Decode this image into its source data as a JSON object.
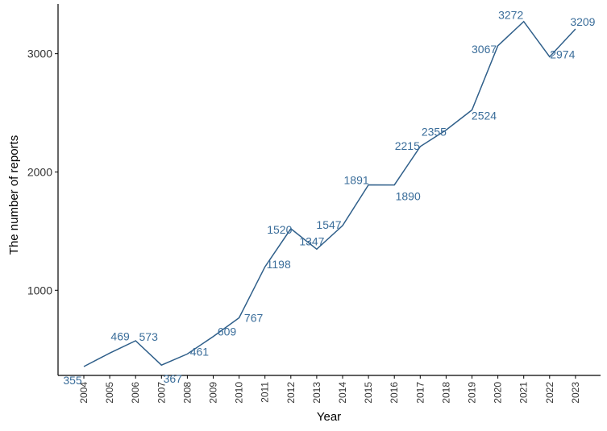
{
  "chart_data": {
    "type": "line",
    "title": "",
    "xlabel": "Year",
    "ylabel": "The number of reports",
    "x": [
      "2004",
      "2005",
      "2006",
      "2007",
      "2008",
      "2009",
      "2010",
      "2011",
      "2012",
      "2013",
      "2014",
      "2015",
      "2016",
      "2017",
      "2018",
      "2019",
      "2020",
      "2021",
      "2022",
      "2023"
    ],
    "series": [
      {
        "values": [
          355,
          469,
          573,
          367,
          461,
          609,
          767,
          1198,
          1520,
          1347,
          1547,
          1891,
          1890,
          2215,
          2355,
          2524,
          3067,
          3272,
          2974,
          3209
        ]
      }
    ],
    "data_labels": [
      "355",
      "469",
      "573",
      "367",
      "461",
      "609",
      "767",
      "1198",
      "1520",
      "1347",
      "1547",
      "1891",
      "1890",
      "2215",
      "2355",
      "2524",
      "3067",
      "3272",
      "2974",
      "3209"
    ],
    "yticks": [
      1000,
      2000,
      3000
    ],
    "ytick_labels": [
      "1000",
      "2000",
      "3000"
    ],
    "ylim": [
      280,
      3420
    ],
    "grid": false,
    "line_color": "#2f5f8a",
    "label_color": "#3a6d9a"
  }
}
